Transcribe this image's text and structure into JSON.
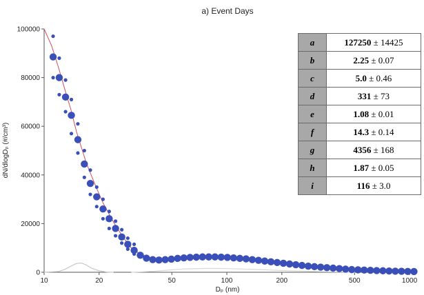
{
  "chart_data": {
    "type": "scatter",
    "title": "a) Event Days",
    "xlabel": "Dₚ (nm)",
    "ylabel": "dN/dlogDₚ (#/cm³)",
    "xscale": "log",
    "xlim": [
      10,
      1100
    ],
    "ylim": [
      0,
      100000
    ],
    "xticks": [
      10,
      20,
      50,
      100,
      200,
      500,
      1000
    ],
    "xtick_labels": [
      "10",
      "20",
      "50",
      "100",
      "200",
      "500",
      "1000"
    ],
    "yticks": [
      0,
      20000,
      40000,
      60000,
      80000,
      100000
    ],
    "ytick_labels": [
      "0",
      "20000",
      "40000",
      "60000",
      "80000",
      "100000"
    ],
    "grid": false,
    "series": [
      {
        "role": "mean",
        "color": "#3a50b8",
        "x": [
          11.2,
          12.1,
          13.1,
          14.1,
          15.3,
          16.6,
          17.9,
          19.4,
          21.0,
          22.7,
          24.6,
          26.6,
          28.7,
          31.1,
          33.6,
          36.3,
          39.3,
          42.5,
          46.0,
          49.7,
          53.8,
          58.2,
          62.9,
          68.1,
          73.6,
          79.6,
          86.1,
          93.1,
          100.7,
          108.9,
          117.8,
          127.4,
          137.8,
          149.0,
          161.2,
          174.3,
          188.5,
          203.9,
          220.5,
          238.5,
          257.9,
          278.9,
          301.7,
          326.2,
          352.9,
          381.6,
          412.8,
          446.4,
          482.8,
          522.2,
          564.8,
          610.8,
          660.6,
          714.5,
          772.8,
          835.8,
          903.9,
          977.6,
          1057.3
        ],
        "y": [
          88500,
          80000,
          72000,
          64500,
          54500,
          44500,
          36500,
          31000,
          26000,
          22000,
          18000,
          14500,
          11500,
          9000,
          7000,
          5800,
          5200,
          5000,
          5200,
          5400,
          5700,
          5900,
          6100,
          6200,
          6300,
          6300,
          6300,
          6200,
          6100,
          5900,
          5700,
          5500,
          5200,
          4900,
          4600,
          4300,
          4000,
          3700,
          3400,
          3100,
          2800,
          2500,
          2300,
          2100,
          1900,
          1700,
          1500,
          1300,
          1100,
          1000,
          900,
          800,
          700,
          600,
          500,
          450,
          400,
          350,
          300
        ]
      },
      {
        "role": "spread",
        "color": "#3a50b8",
        "x": [
          11.2,
          11.2,
          12.1,
          12.1,
          13.1,
          13.1,
          14.1,
          14.1,
          15.3,
          15.3,
          16.6,
          16.6,
          17.9,
          17.9,
          19.4,
          19.4,
          21.0,
          21.0,
          22.7,
          22.7,
          24.6,
          24.6,
          26.6,
          26.6,
          28.7,
          28.7,
          31.1,
          31.1
        ],
        "y": [
          97000,
          80000,
          88000,
          73000,
          79000,
          66000,
          71000,
          57000,
          61000,
          49000,
          50000,
          39000,
          42000,
          32000,
          35000,
          27000,
          30000,
          22000,
          25000,
          18000,
          21000,
          15000,
          17500,
          12000,
          14000,
          9500,
          11500,
          7500
        ]
      },
      {
        "role": "fit",
        "color": "#d05060",
        "x": [
          10,
          11,
          12,
          13,
          14,
          15,
          17,
          19,
          21,
          24,
          27,
          30,
          34,
          38,
          42,
          46,
          50,
          60,
          70,
          80,
          90,
          100,
          120,
          150,
          200,
          250,
          300,
          400,
          500,
          700,
          1000,
          1100
        ],
        "y": [
          100000,
          93000,
          84000,
          75000,
          67000,
          58000,
          45000,
          36000,
          28500,
          20500,
          14500,
          10000,
          7200,
          6000,
          5400,
          5200,
          5200,
          5700,
          6100,
          6300,
          6350,
          6300,
          6000,
          5300,
          4200,
          3300,
          2600,
          1700,
          1100,
          600,
          300,
          250
        ]
      },
      {
        "role": "mode-1",
        "color": "#c8c8c8",
        "x": [
          10,
          12,
          13,
          14,
          15,
          16,
          17,
          18,
          20,
          22,
          24
        ],
        "y": [
          0,
          300,
          1200,
          2500,
          3600,
          3800,
          3000,
          1800,
          600,
          100,
          0
        ]
      },
      {
        "role": "mode-2",
        "color": "#d8d8d8",
        "x": [
          30,
          40,
          50,
          60,
          80,
          100,
          150,
          200,
          300,
          500
        ],
        "y": [
          0,
          400,
          1000,
          1400,
          1600,
          1500,
          1100,
          700,
          300,
          0
        ]
      }
    ]
  },
  "param_table": [
    {
      "key": "a",
      "value": "127250",
      "err": "± 14425"
    },
    {
      "key": "b",
      "value": "2.25",
      "err": "± 0.07"
    },
    {
      "key": "c",
      "value": "5.0",
      "err": "± 0.46"
    },
    {
      "key": "d",
      "value": "331",
      "err": "± 73"
    },
    {
      "key": "e",
      "value": "1.08",
      "err": "± 0.01"
    },
    {
      "key": "f",
      "value": "14.3",
      "err": "± 0.14"
    },
    {
      "key": "g",
      "value": "4356",
      "err": "± 168"
    },
    {
      "key": "h",
      "value": "1.87",
      "err": "± 0.05"
    },
    {
      "key": "i",
      "value": "116",
      "err": "± 3.0"
    }
  ]
}
